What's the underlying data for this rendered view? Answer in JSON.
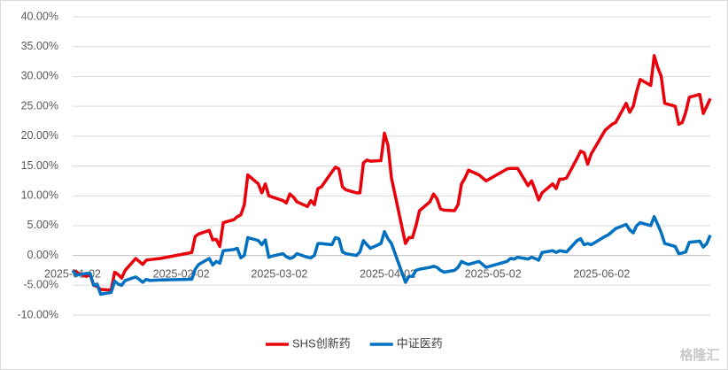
{
  "chart_data": {
    "type": "line",
    "x": [
      "2025-01-02",
      "2025-01-03",
      "2025-01-06",
      "2025-01-07",
      "2025-01-08",
      "2025-01-09",
      "2025-01-10",
      "2025-01-13",
      "2025-01-14",
      "2025-01-15",
      "2025-01-16",
      "2025-01-17",
      "2025-01-20",
      "2025-01-21",
      "2025-01-22",
      "2025-01-23",
      "2025-01-24",
      "2025-01-27",
      "2025-02-05",
      "2025-02-06",
      "2025-02-07",
      "2025-02-10",
      "2025-02-11",
      "2025-02-12",
      "2025-02-13",
      "2025-02-14",
      "2025-02-17",
      "2025-02-18",
      "2025-02-19",
      "2025-02-20",
      "2025-02-21",
      "2025-02-24",
      "2025-02-25",
      "2025-02-26",
      "2025-02-27",
      "2025-02-28",
      "2025-03-03",
      "2025-03-04",
      "2025-03-05",
      "2025-03-06",
      "2025-03-07",
      "2025-03-10",
      "2025-03-11",
      "2025-03-12",
      "2025-03-13",
      "2025-03-14",
      "2025-03-17",
      "2025-03-18",
      "2025-03-19",
      "2025-03-20",
      "2025-03-21",
      "2025-03-24",
      "2025-03-25",
      "2025-03-26",
      "2025-03-27",
      "2025-03-28",
      "2025-03-31",
      "2025-04-01",
      "2025-04-02",
      "2025-04-03",
      "2025-04-07",
      "2025-04-08",
      "2025-04-09",
      "2025-04-10",
      "2025-04-11",
      "2025-04-14",
      "2025-04-15",
      "2025-04-16",
      "2025-04-17",
      "2025-04-18",
      "2025-04-21",
      "2025-04-22",
      "2025-04-23",
      "2025-04-24",
      "2025-04-25",
      "2025-04-28",
      "2025-04-29",
      "2025-04-30",
      "2025-05-06",
      "2025-05-07",
      "2025-05-08",
      "2025-05-09",
      "2025-05-12",
      "2025-05-13",
      "2025-05-14",
      "2025-05-15",
      "2025-05-16",
      "2025-05-19",
      "2025-05-20",
      "2025-05-21",
      "2025-05-22",
      "2025-05-23",
      "2025-05-26",
      "2025-05-27",
      "2025-05-28",
      "2025-05-29",
      "2025-05-30",
      "2025-06-03",
      "2025-06-04",
      "2025-06-05",
      "2025-06-06",
      "2025-06-09",
      "2025-06-10",
      "2025-06-11",
      "2025-06-12",
      "2025-06-13",
      "2025-06-16",
      "2025-06-17",
      "2025-06-18",
      "2025-06-19",
      "2025-06-20",
      "2025-06-23",
      "2025-06-24",
      "2025-06-25",
      "2025-06-26",
      "2025-06-27",
      "2025-06-30",
      "2025-07-01",
      "2025-07-02",
      "2025-07-03"
    ],
    "series": [
      {
        "name": "SHS创新药",
        "color": "#e8000b",
        "values": [
          -2.5,
          -2.8,
          -3.5,
          -3.2,
          -5.0,
          -5.2,
          -5.7,
          -5.8,
          -2.8,
          -3.2,
          -3.8,
          -2.5,
          -0.5,
          -1.0,
          -1.5,
          -0.8,
          -0.7,
          -0.5,
          0.5,
          3.2,
          3.6,
          4.2,
          2.6,
          2.7,
          1.5,
          5.5,
          6.0,
          6.5,
          6.8,
          8.5,
          13.5,
          12.0,
          10.5,
          12.0,
          10.0,
          9.8,
          9.2,
          8.8,
          10.3,
          9.8,
          9.0,
          8.2,
          9.2,
          8.5,
          11.2,
          11.5,
          14.0,
          14.8,
          14.5,
          11.5,
          11.0,
          10.5,
          10.5,
          15.5,
          16.0,
          15.8,
          15.9,
          20.5,
          18.5,
          13.0,
          2.0,
          3.0,
          3.0,
          5.0,
          7.5,
          9.0,
          10.3,
          9.5,
          7.8,
          7.6,
          7.5,
          8.5,
          12.0,
          13.0,
          14.3,
          13.5,
          13.0,
          12.5,
          14.5,
          14.6,
          14.6,
          14.6,
          11.7,
          12.5,
          11.0,
          9.3,
          10.5,
          12.0,
          11.2,
          12.8,
          12.8,
          13.0,
          16.3,
          17.5,
          17.2,
          15.3,
          17.0,
          21.0,
          21.5,
          22.0,
          22.3,
          25.5,
          24.0,
          25.0,
          27.5,
          29.5,
          28.5,
          33.5,
          31.5,
          30.0,
          25.5,
          25.0,
          22.0,
          22.3,
          24.0,
          26.5,
          27.0,
          23.8,
          25.0,
          26.3
        ]
      },
      {
        "name": "中证医药",
        "color": "#0070c0",
        "values": [
          -2.5,
          -3.3,
          -3.0,
          -3.0,
          -5.0,
          -4.8,
          -6.5,
          -6.2,
          -4.3,
          -4.8,
          -5.0,
          -4.2,
          -3.6,
          -4.0,
          -4.5,
          -4.0,
          -4.2,
          -4.1,
          -4.0,
          -2.3,
          -1.5,
          -0.5,
          -1.6,
          -1.0,
          -1.3,
          0.8,
          1.0,
          1.2,
          -0.4,
          0.0,
          3.0,
          2.5,
          1.8,
          2.6,
          -0.3,
          -0.1,
          0.3,
          -0.2,
          -0.5,
          -0.3,
          0.3,
          -0.3,
          -0.4,
          0.0,
          2.0,
          2.0,
          1.8,
          3.0,
          2.8,
          0.6,
          0.3,
          0.0,
          0.6,
          2.5,
          1.8,
          1.2,
          2.0,
          4.0,
          2.8,
          2.0,
          -4.5,
          -3.5,
          -3.5,
          -2.5,
          -2.3,
          -2.0,
          -1.8,
          -2.0,
          -2.5,
          -2.8,
          -2.5,
          -2.0,
          -1.0,
          -1.3,
          -1.5,
          -1.0,
          -1.5,
          -2.0,
          -1.0,
          -0.5,
          -0.6,
          -0.3,
          -0.6,
          -0.3,
          -0.5,
          -0.8,
          0.5,
          0.8,
          0.5,
          0.8,
          0.7,
          0.6,
          2.5,
          2.8,
          1.8,
          2.0,
          1.8,
          3.2,
          3.5,
          4.0,
          4.5,
          5.2,
          4.3,
          3.8,
          5.0,
          5.5,
          5.0,
          6.5,
          5.2,
          3.8,
          2.0,
          1.5,
          0.3,
          0.4,
          0.6,
          2.2,
          2.4,
          1.4,
          2.0,
          3.4
        ]
      }
    ],
    "xlim": [
      "2025-01-02",
      "2025-07-03"
    ],
    "xticks": [
      "2025-01-02",
      "2025-02-02",
      "2025-03-02",
      "2025-04-02",
      "2025-05-02",
      "2025-06-02"
    ],
    "ylim": [
      -10,
      40
    ],
    "yticks": [
      {
        "value": -10,
        "label": "-10.00%"
      },
      {
        "value": -5,
        "label": "-5.00%"
      },
      {
        "value": 0,
        "label": "0.00%"
      },
      {
        "value": 5,
        "label": "5.00%"
      },
      {
        "value": 10,
        "label": "10.00%"
      },
      {
        "value": 15,
        "label": "15.00%"
      },
      {
        "value": 20,
        "label": "20.00%"
      },
      {
        "value": 25,
        "label": "25.00%"
      },
      {
        "value": 30,
        "label": "30.00%"
      },
      {
        "value": 35,
        "label": "35.00%"
      },
      {
        "value": 40,
        "label": "40.00%"
      }
    ],
    "grid": true,
    "legend": "bottom",
    "watermark": "格隆汇"
  }
}
